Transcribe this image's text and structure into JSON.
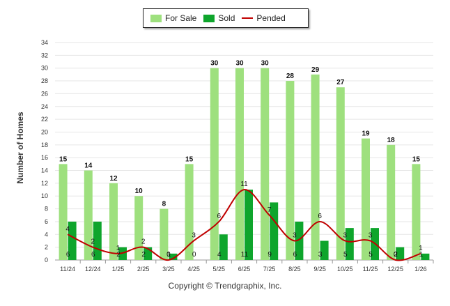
{
  "chart_data": {
    "type": "bar",
    "categories": [
      "11/24",
      "12/24",
      "1/25",
      "2/25",
      "3/25",
      "4/25",
      "5/25",
      "6/25",
      "7/25",
      "8/25",
      "9/25",
      "10/25",
      "11/25",
      "12/25",
      "1/26"
    ],
    "series": [
      {
        "name": "For Sale",
        "type": "bar",
        "color": "#9ee07e",
        "values": [
          15,
          14,
          12,
          10,
          8,
          15,
          30,
          30,
          30,
          28,
          29,
          27,
          19,
          18,
          15
        ]
      },
      {
        "name": "Sold",
        "type": "bar",
        "color": "#0ea52c",
        "values": [
          6,
          6,
          2,
          2,
          1,
          0,
          4,
          11,
          9,
          6,
          3,
          5,
          5,
          2,
          1
        ]
      },
      {
        "name": "Pended",
        "type": "line",
        "color": "#c00000",
        "values": [
          4,
          2,
          1,
          2,
          0,
          3,
          6,
          11,
          7,
          3,
          6,
          3,
          3,
          0,
          1
        ]
      }
    ],
    "ylabel": "Number of Homes",
    "xlabel": "",
    "ylim": [
      0,
      34
    ],
    "yticks": [
      0,
      2,
      4,
      6,
      8,
      10,
      12,
      14,
      16,
      18,
      20,
      22,
      24,
      26,
      28,
      30,
      32,
      34
    ],
    "grid": true,
    "legend": "top-center",
    "credit": "Copyright © Trendgraphix, Inc."
  }
}
